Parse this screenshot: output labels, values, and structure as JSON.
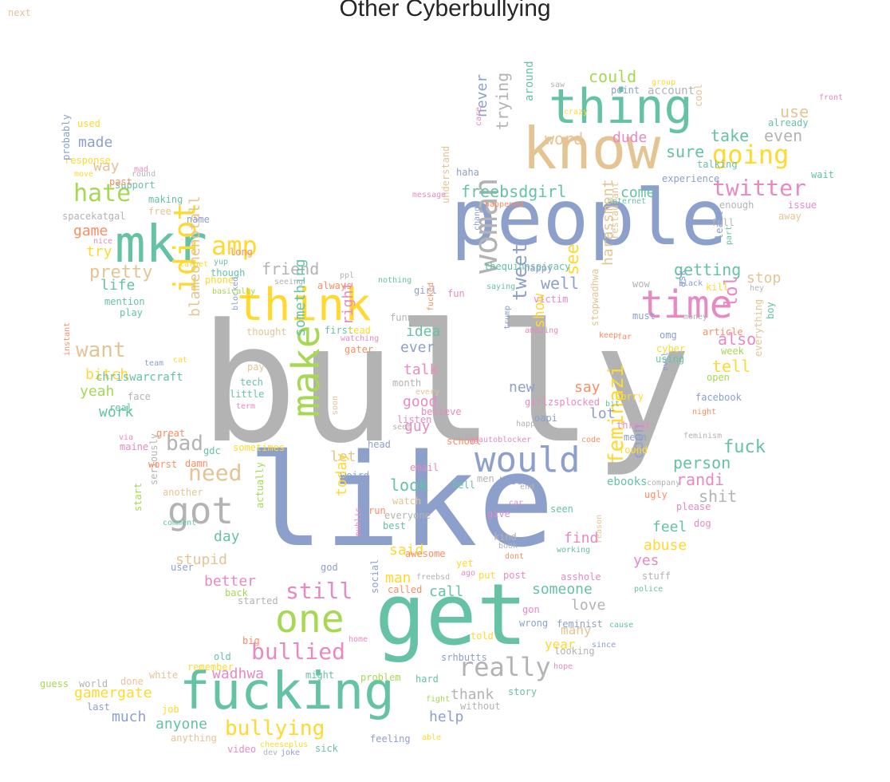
{
  "title": "Other Cyberbullying",
  "palette": {
    "teal": "#66c2a5",
    "orange": "#fc8d62",
    "blue": "#8da0cb",
    "pink": "#e78ac3",
    "green": "#a6d854",
    "yellow": "#ffd92f",
    "tan": "#e5c494",
    "gray": "#b3b3b3"
  },
  "words": [
    {
      "text": "bully",
      "color": "gray"
    },
    {
      "text": "like",
      "color": "blue"
    },
    {
      "text": "get",
      "color": "teal"
    },
    {
      "text": "people",
      "color": "blue"
    },
    {
      "text": "know",
      "color": "tan"
    },
    {
      "text": "thing",
      "color": "teal"
    },
    {
      "text": "fucking",
      "color": "teal"
    },
    {
      "text": "think",
      "color": "yellow"
    },
    {
      "text": "time",
      "color": "pink"
    },
    {
      "text": "mkr",
      "color": "teal"
    },
    {
      "text": "one",
      "color": "green"
    },
    {
      "text": "make",
      "color": "green"
    },
    {
      "text": "got",
      "color": "gray"
    },
    {
      "text": "idiot",
      "color": "yellow"
    },
    {
      "text": "woman",
      "color": "gray"
    },
    {
      "text": "would",
      "color": "blue"
    },
    {
      "text": "going",
      "color": "yellow"
    },
    {
      "text": "twitter",
      "color": "pink"
    },
    {
      "text": "hate",
      "color": "green"
    },
    {
      "text": "amp",
      "color": "yellow"
    },
    {
      "text": "want",
      "color": "tan"
    },
    {
      "text": "bullied",
      "color": "pink"
    },
    {
      "text": "bullying",
      "color": "yellow"
    },
    {
      "text": "really",
      "color": "gray"
    },
    {
      "text": "feminazi",
      "color": "yellow"
    },
    {
      "text": "need",
      "color": "tan"
    },
    {
      "text": "still",
      "color": "pink"
    },
    {
      "text": "bad",
      "color": "gray"
    },
    {
      "text": "word",
      "color": "tan"
    },
    {
      "text": "could",
      "color": "green"
    },
    {
      "text": "use",
      "color": "tan"
    },
    {
      "text": "made",
      "color": "blue"
    },
    {
      "text": "way",
      "color": "tan"
    },
    {
      "text": "dude",
      "color": "pink"
    },
    {
      "text": "even",
      "color": "gray"
    },
    {
      "text": "take",
      "color": "teal"
    },
    {
      "text": "sure",
      "color": "teal"
    },
    {
      "text": "freebsdgirl",
      "color": "teal"
    },
    {
      "text": "come",
      "color": "teal"
    },
    {
      "text": "trying",
      "color": "gray"
    },
    {
      "text": "never",
      "color": "blue"
    },
    {
      "text": "around",
      "color": "teal"
    },
    {
      "text": "account",
      "color": "gray"
    },
    {
      "text": "cool",
      "color": "tan"
    },
    {
      "text": "already",
      "color": "teal"
    },
    {
      "text": "wait",
      "color": "teal"
    },
    {
      "text": "getting",
      "color": "teal"
    },
    {
      "text": "stop",
      "color": "tan"
    },
    {
      "text": "lol",
      "color": "pink"
    },
    {
      "text": "see",
      "color": "yellow"
    },
    {
      "text": "well",
      "color": "blue"
    },
    {
      "text": "friend",
      "color": "gray"
    },
    {
      "text": "pretty",
      "color": "tan"
    },
    {
      "text": "life",
      "color": "teal"
    },
    {
      "text": "game",
      "color": "orange"
    },
    {
      "text": "try",
      "color": "yellow"
    },
    {
      "text": "bitch",
      "color": "yellow"
    },
    {
      "text": "yeah",
      "color": "green"
    },
    {
      "text": "work",
      "color": "teal"
    },
    {
      "text": "harassment",
      "color": "tan"
    },
    {
      "text": "tell",
      "color": "yellow"
    },
    {
      "text": "also",
      "color": "pink"
    },
    {
      "text": "tweet",
      "color": "blue"
    },
    {
      "text": "show",
      "color": "yellow"
    },
    {
      "text": "idea",
      "color": "teal"
    },
    {
      "text": "ever",
      "color": "blue"
    },
    {
      "text": "talk",
      "color": "pink"
    },
    {
      "text": "right",
      "color": "pink"
    },
    {
      "text": "new",
      "color": "blue"
    },
    {
      "text": "say",
      "color": "orange"
    },
    {
      "text": "good",
      "color": "pink"
    },
    {
      "text": "lot",
      "color": "blue"
    },
    {
      "text": "fuck",
      "color": "teal"
    },
    {
      "text": "person",
      "color": "teal"
    },
    {
      "text": "randi",
      "color": "pink"
    },
    {
      "text": "guy",
      "color": "pink"
    },
    {
      "text": "let",
      "color": "tan"
    },
    {
      "text": "look",
      "color": "teal"
    },
    {
      "text": "shit",
      "color": "gray"
    },
    {
      "text": "feel",
      "color": "teal"
    },
    {
      "text": "abuse",
      "color": "yellow"
    },
    {
      "text": "coon",
      "color": "blue"
    },
    {
      "text": "find",
      "color": "pink"
    },
    {
      "text": "yes",
      "color": "pink"
    },
    {
      "text": "today",
      "color": "yellow"
    },
    {
      "text": "said",
      "color": "yellow"
    },
    {
      "text": "day",
      "color": "teal"
    },
    {
      "text": "stupid",
      "color": "tan"
    },
    {
      "text": "better",
      "color": "pink"
    },
    {
      "text": "someone",
      "color": "teal"
    },
    {
      "text": "love",
      "color": "gray"
    },
    {
      "text": "many",
      "color": "tan"
    },
    {
      "text": "year",
      "color": "yellow"
    },
    {
      "text": "man",
      "color": "yellow"
    },
    {
      "text": "call",
      "color": "teal"
    },
    {
      "text": "wadhwa",
      "color": "pink"
    },
    {
      "text": "gamergate",
      "color": "yellow"
    },
    {
      "text": "much",
      "color": "blue"
    },
    {
      "text": "anyone",
      "color": "teal"
    },
    {
      "text": "help",
      "color": "blue"
    },
    {
      "text": "thank",
      "color": "gray"
    },
    {
      "text": "blameonenotall",
      "color": "tan"
    },
    {
      "text": "something",
      "color": "teal"
    },
    {
      "text": "chriswarcraft",
      "color": "teal"
    },
    {
      "text": "thequinnspiracy",
      "color": "teal"
    },
    {
      "text": "restaurant",
      "color": "tan"
    },
    {
      "text": "understand",
      "color": "tan"
    },
    {
      "text": "stopwadhwa",
      "color": "tan"
    },
    {
      "text": "everything",
      "color": "tan"
    },
    {
      "text": "seriously",
      "color": "gray"
    },
    {
      "text": "actually",
      "color": "green"
    },
    {
      "text": "sometimes",
      "color": "yellow"
    },
    {
      "text": "spacekatgal",
      "color": "gray"
    },
    {
      "text": "support",
      "color": "teal"
    },
    {
      "text": "response",
      "color": "yellow"
    },
    {
      "text": "probably",
      "color": "blue"
    },
    {
      "text": "used",
      "color": "yellow"
    },
    {
      "text": "making",
      "color": "teal"
    },
    {
      "text": "free",
      "color": "tan"
    },
    {
      "text": "past",
      "color": "orange"
    },
    {
      "text": "name",
      "color": "blue"
    },
    {
      "text": "long",
      "color": "orange"
    },
    {
      "text": "though",
      "color": "teal"
    },
    {
      "text": "phone",
      "color": "yellow"
    },
    {
      "text": "mention",
      "color": "teal"
    },
    {
      "text": "play",
      "color": "teal"
    },
    {
      "text": "thought",
      "color": "tan"
    },
    {
      "text": "pay",
      "color": "tan"
    },
    {
      "text": "tech",
      "color": "teal"
    },
    {
      "text": "little",
      "color": "teal"
    },
    {
      "text": "face",
      "color": "gray"
    },
    {
      "text": "real",
      "color": "teal"
    },
    {
      "text": "great",
      "color": "orange"
    },
    {
      "text": "gdc",
      "color": "teal"
    },
    {
      "text": "maine",
      "color": "pink"
    },
    {
      "text": "worst",
      "color": "orange"
    },
    {
      "text": "damn",
      "color": "orange"
    },
    {
      "text": "another",
      "color": "tan"
    },
    {
      "text": "start",
      "color": "green"
    },
    {
      "text": "user",
      "color": "blue"
    },
    {
      "text": "back",
      "color": "green"
    },
    {
      "text": "started",
      "color": "gray"
    },
    {
      "text": "old",
      "color": "teal"
    },
    {
      "text": "remember",
      "color": "yellow"
    },
    {
      "text": "white",
      "color": "tan"
    },
    {
      "text": "guess",
      "color": "green"
    },
    {
      "text": "world",
      "color": "gray"
    },
    {
      "text": "done",
      "color": "tan"
    },
    {
      "text": "last",
      "color": "blue"
    },
    {
      "text": "job",
      "color": "yellow"
    },
    {
      "text": "anything",
      "color": "tan"
    },
    {
      "text": "video",
      "color": "pink"
    },
    {
      "text": "dev",
      "color": "gray"
    },
    {
      "text": "joke",
      "color": "blue"
    },
    {
      "text": "sick",
      "color": "teal"
    },
    {
      "text": "feeling",
      "color": "blue"
    },
    {
      "text": "without",
      "color": "gray"
    },
    {
      "text": "story",
      "color": "teal"
    },
    {
      "text": "fight",
      "color": "green"
    },
    {
      "text": "able",
      "color": "yellow"
    },
    {
      "text": "problem",
      "color": "green"
    },
    {
      "text": "hard",
      "color": "teal"
    },
    {
      "text": "srhbutts",
      "color": "blue"
    },
    {
      "text": "might",
      "color": "teal"
    },
    {
      "text": "big",
      "color": "orange"
    },
    {
      "text": "home",
      "color": "pink"
    },
    {
      "text": "told",
      "color": "yellow"
    },
    {
      "text": "social",
      "color": "blue"
    },
    {
      "text": "called",
      "color": "orange"
    },
    {
      "text": "god",
      "color": "blue"
    },
    {
      "text": "freebsd",
      "color": "gray"
    },
    {
      "text": "yet",
      "color": "yellow"
    },
    {
      "text": "put",
      "color": "yellow"
    },
    {
      "text": "post",
      "color": "pink"
    },
    {
      "text": "asshole",
      "color": "pink"
    },
    {
      "text": "gon",
      "color": "pink"
    },
    {
      "text": "wrong",
      "color": "blue"
    },
    {
      "text": "feminist",
      "color": "blue"
    },
    {
      "text": "looking",
      "color": "gray"
    },
    {
      "text": "since",
      "color": "blue"
    },
    {
      "text": "cause",
      "color": "teal"
    },
    {
      "text": "hope",
      "color": "pink"
    },
    {
      "text": "police",
      "color": "teal"
    },
    {
      "text": "stuff",
      "color": "gray"
    },
    {
      "text": "reason",
      "color": "tan"
    },
    {
      "text": "working",
      "color": "teal"
    },
    {
      "text": "seen",
      "color": "teal"
    },
    {
      "text": "give",
      "color": "pink"
    },
    {
      "text": "kind",
      "color": "gray"
    },
    {
      "text": "book",
      "color": "gray"
    },
    {
      "text": "dont",
      "color": "orange"
    },
    {
      "text": "ago",
      "color": "pink"
    },
    {
      "text": "best",
      "color": "teal"
    },
    {
      "text": "awesome",
      "color": "orange"
    },
    {
      "text": "public",
      "color": "pink"
    },
    {
      "text": "everyone",
      "color": "gray"
    },
    {
      "text": "watch",
      "color": "tan"
    },
    {
      "text": "run",
      "color": "orange"
    },
    {
      "text": "hell",
      "color": "teal"
    },
    {
      "text": "men",
      "color": "gray"
    },
    {
      "text": "block",
      "color": "blue"
    },
    {
      "text": "end",
      "color": "gray"
    },
    {
      "text": "car",
      "color": "pink"
    },
    {
      "text": "weird",
      "color": "blue"
    },
    {
      "text": "email",
      "color": "pink"
    },
    {
      "text": "head",
      "color": "blue"
    },
    {
      "text": "school",
      "color": "orange"
    },
    {
      "text": "ggautoblocker",
      "color": "pink"
    },
    {
      "text": "code",
      "color": "orange"
    },
    {
      "text": "found",
      "color": "yellow"
    },
    {
      "text": "ebooks",
      "color": "teal"
    },
    {
      "text": "company",
      "color": "gray"
    },
    {
      "text": "ugly",
      "color": "orange"
    },
    {
      "text": "please",
      "color": "pink"
    },
    {
      "text": "dog",
      "color": "pink"
    },
    {
      "text": "feminism",
      "color": "gray"
    },
    {
      "text": "mean",
      "color": "blue"
    },
    {
      "text": "threat",
      "color": "pink"
    },
    {
      "text": "night",
      "color": "orange"
    },
    {
      "text": "facebook",
      "color": "blue"
    },
    {
      "text": "sorry",
      "color": "yellow"
    },
    {
      "text": "bit",
      "color": "teal"
    },
    {
      "text": "evil",
      "color": "blue"
    },
    {
      "text": "open",
      "color": "green"
    },
    {
      "text": "using",
      "color": "teal"
    },
    {
      "text": "week",
      "color": "green"
    },
    {
      "text": "cyber",
      "color": "yellow"
    },
    {
      "text": "omg",
      "color": "blue"
    },
    {
      "text": "keep",
      "color": "orange"
    },
    {
      "text": "far",
      "color": "orange"
    },
    {
      "text": "article",
      "color": "orange"
    },
    {
      "text": "boy",
      "color": "teal"
    },
    {
      "text": "money",
      "color": "gray"
    },
    {
      "text": "must",
      "color": "blue"
    },
    {
      "text": "hey",
      "color": "gray"
    },
    {
      "text": "kill",
      "color": "yellow"
    },
    {
      "text": "black",
      "color": "blue"
    },
    {
      "text": "wow",
      "color": "gray"
    },
    {
      "text": "ask",
      "color": "blue"
    },
    {
      "text": "happy",
      "color": "blue"
    },
    {
      "text": "least",
      "color": "blue"
    },
    {
      "text": "part",
      "color": "teal"
    },
    {
      "text": "full",
      "color": "gray"
    },
    {
      "text": "away",
      "color": "tan"
    },
    {
      "text": "issue",
      "color": "pink"
    },
    {
      "text": "enough",
      "color": "gray"
    },
    {
      "text": "internet",
      "color": "teal"
    },
    {
      "text": "experience",
      "color": "blue"
    },
    {
      "text": "talking",
      "color": "teal"
    },
    {
      "text": "point",
      "color": "blue"
    },
    {
      "text": "saw",
      "color": "gray"
    },
    {
      "text": "group",
      "color": "yellow"
    },
    {
      "text": "front",
      "color": "pink"
    },
    {
      "text": "crazy",
      "color": "yellow"
    },
    {
      "text": "haha",
      "color": "blue"
    },
    {
      "text": "care",
      "color": "pink"
    },
    {
      "text": "message",
      "color": "pink"
    },
    {
      "text": "happened",
      "color": "orange"
    },
    {
      "text": "change",
      "color": "blue"
    },
    {
      "text": "victim",
      "color": "pink"
    },
    {
      "text": "saying",
      "color": "teal"
    },
    {
      "text": "fun",
      "color": "pink"
    },
    {
      "text": "girl",
      "color": "blue"
    },
    {
      "text": "always",
      "color": "orange"
    },
    {
      "text": "nothing",
      "color": "teal"
    },
    {
      "text": "seeing",
      "color": "gray"
    },
    {
      "text": "ppl",
      "color": "gray"
    },
    {
      "text": "fucked",
      "color": "orange"
    },
    {
      "text": "funny",
      "color": "gray"
    },
    {
      "text": "first",
      "color": "teal"
    },
    {
      "text": "read",
      "color": "yellow"
    },
    {
      "text": "watching",
      "color": "pink"
    },
    {
      "text": "gater",
      "color": "orange"
    },
    {
      "text": "trump",
      "color": "blue"
    },
    {
      "text": "amazing",
      "color": "pink"
    },
    {
      "text": "month",
      "color": "gray"
    },
    {
      "text": "every",
      "color": "tan"
    },
    {
      "text": "listen",
      "color": "pink"
    },
    {
      "text": "believe",
      "color": "pink"
    },
    {
      "text": "seem",
      "color": "gray"
    },
    {
      "text": "soon",
      "color": "tan"
    },
    {
      "text": "girlzsplocked",
      "color": "pink"
    },
    {
      "text": "happen",
      "color": "gray"
    },
    {
      "text": "oapi",
      "color": "blue"
    },
    {
      "text": "cat",
      "color": "yellow"
    },
    {
      "text": "team",
      "color": "blue"
    },
    {
      "text": "term",
      "color": "pink"
    },
    {
      "text": "blocked",
      "color": "blue"
    },
    {
      "text": "instant",
      "color": "orange"
    },
    {
      "text": "basically",
      "color": "green"
    },
    {
      "text": "yup",
      "color": "teal"
    },
    {
      "text": "target",
      "color": "yellow"
    },
    {
      "text": "nice",
      "color": "pink"
    },
    {
      "text": "move",
      "color": "yellow"
    },
    {
      "text": "mad",
      "color": "pink"
    },
    {
      "text": "round",
      "color": "gray"
    },
    {
      "text": "via",
      "color": "pink"
    },
    {
      "text": "comment",
      "color": "teal"
    },
    {
      "text": "cheeseplus",
      "color": "yellow"
    },
    {
      "text": "next",
      "color": "tan"
    }
  ]
}
